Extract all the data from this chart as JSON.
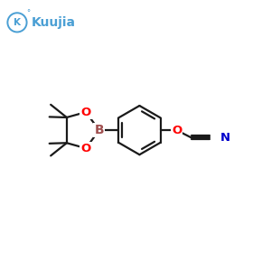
{
  "bg_color": "#ffffff",
  "logo_text": "Kuujia",
  "logo_color": "#4a9fd4",
  "bond_color": "#1a1a1a",
  "B_color": "#a05050",
  "O_color": "#ff0000",
  "N_color": "#0000cc",
  "line_width": 1.6,
  "figsize": [
    3.0,
    3.0
  ],
  "dpi": 100,
  "xlim": [
    0,
    10
  ],
  "ylim": [
    0,
    10
  ]
}
